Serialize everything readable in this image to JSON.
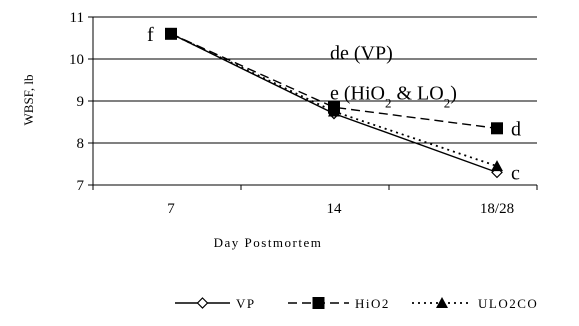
{
  "chart_data": {
    "type": "line",
    "title": "",
    "xlabel": "Day Postmortem",
    "ylabel": "WBSF, lb",
    "categories": [
      "7",
      "14",
      "18/28"
    ],
    "ylim": [
      7,
      11
    ],
    "yticks": [
      7,
      8,
      9,
      10,
      11
    ],
    "grid": true,
    "legend_position": "bottom",
    "series": [
      {
        "name": "VP",
        "values": [
          10.6,
          8.7,
          7.3
        ],
        "color": "#000000",
        "line": "solid",
        "marker": "diamond-open"
      },
      {
        "name": "HiO2",
        "values": [
          10.6,
          8.85,
          8.35
        ],
        "color": "#000000",
        "line": "dashed",
        "marker": "square-filled"
      },
      {
        "name": "ULO2CO",
        "values": [
          10.6,
          8.75,
          7.45
        ],
        "color": "#000000",
        "line": "dotted",
        "marker": "triangle-filled"
      }
    ],
    "annotations": [
      {
        "id": "f",
        "text": "f",
        "x": "7",
        "y": 10.6
      },
      {
        "id": "de",
        "text": "de (VP)",
        "x": "14",
        "y": 10.15
      },
      {
        "id": "e",
        "parts": [
          {
            "text": "e (HiO",
            "sub": false
          },
          {
            "text": "2",
            "sub": true
          },
          {
            "text": " & LO",
            "sub": false
          },
          {
            "text": "2",
            "sub": true
          },
          {
            "text": ")",
            "sub": false
          }
        ],
        "x": "14",
        "y": 9.2
      },
      {
        "id": "d",
        "text": "d",
        "x": "18/28",
        "y": 8.35
      },
      {
        "id": "c",
        "text": "c",
        "x": "18/28",
        "y": 7.3
      }
    ]
  }
}
